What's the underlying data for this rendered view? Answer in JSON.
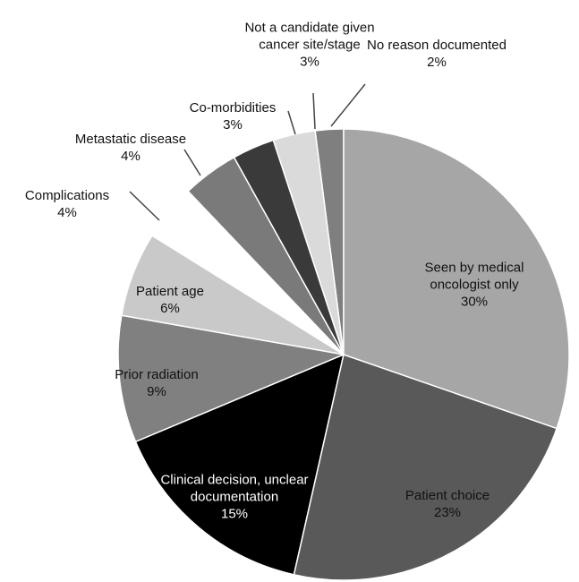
{
  "chart_data": {
    "type": "pie",
    "categories": [
      "Seen by medical oncologist only",
      "Patient choice",
      "Clinical decision, unclear documentation",
      "Prior radiation",
      "Patient age",
      "Complications",
      "Metastatic disease",
      "Co-morbidities",
      "Not a candidate given cancer site/stage",
      "No reason documented"
    ],
    "values": [
      30,
      23,
      15,
      9,
      6,
      4,
      4,
      3,
      3,
      2
    ],
    "value_labels": [
      "30%",
      "23%",
      "15%",
      "9%",
      "6%",
      "4%",
      "4%",
      "3%",
      "3%",
      "2%"
    ],
    "colors": [
      "#a6a6a6",
      "#595959",
      "#000000",
      "#808080",
      "#c9c9c9",
      "#ffffff",
      "#7a7a7a",
      "#3a3a3a",
      "#dadada",
      "#7f7f7f"
    ]
  }
}
